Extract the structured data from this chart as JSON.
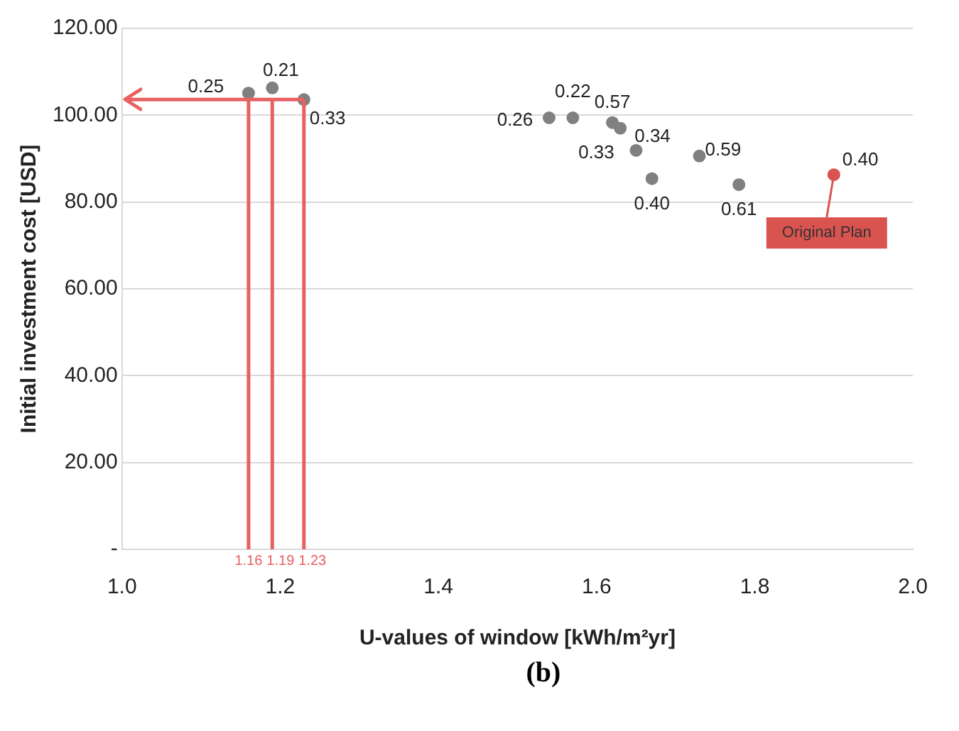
{
  "chart_data": {
    "type": "scatter",
    "xlabel": "U-values of window [kWh/m²yr]",
    "ylabel": "Initial investment cost [USD]",
    "xlim": [
      1.0,
      2.0
    ],
    "xticks": [
      {
        "value": 1.0,
        "label": "1.0"
      },
      {
        "value": 1.2,
        "label": "1.2"
      },
      {
        "value": 1.4,
        "label": "1.4"
      },
      {
        "value": 1.6,
        "label": "1.6"
      },
      {
        "value": 1.8,
        "label": "1.8"
      },
      {
        "value": 2.0,
        "label": "2.0"
      }
    ],
    "ylim": [
      0,
      120
    ],
    "yticks": [
      {
        "value": 0,
        "label": "-"
      },
      {
        "value": 20,
        "label": "20.00"
      },
      {
        "value": 40,
        "label": "40.00"
      },
      {
        "value": 60,
        "label": "60.00"
      },
      {
        "value": 80,
        "label": "80.00"
      },
      {
        "value": 100,
        "label": "100.00"
      },
      {
        "value": 120,
        "label": "120.00"
      }
    ],
    "grid": "y",
    "marker": "circle",
    "series": [
      {
        "color": "#808080",
        "x": [
          1.16,
          1.19,
          1.23,
          1.54,
          1.57,
          1.62,
          1.63,
          1.65,
          1.67,
          1.73,
          1.78
        ],
        "values": [
          105.1,
          106.3,
          103.6,
          99.4,
          99.4,
          98.3,
          97.0,
          91.9,
          85.4,
          90.6,
          84.0
        ]
      },
      {
        "color": "#d9534f",
        "x": [
          1.9
        ],
        "values": [
          86.3
        ]
      }
    ],
    "ref_lines": [
      {
        "axis": "x",
        "value": 1.16,
        "label": "1.16",
        "color": "#e86060"
      },
      {
        "axis": "x",
        "value": 1.19,
        "label": "1.19",
        "color": "#e86060"
      },
      {
        "axis": "x",
        "value": 1.23,
        "label": "1.23",
        "color": "#e86060"
      },
      {
        "axis": "y",
        "value": 103.6,
        "color": "#e86060"
      }
    ],
    "annotations": [
      {
        "text": "0.25",
        "x": 1.16,
        "y": 105.1
      },
      {
        "text": "0.21",
        "x": 1.19,
        "y": 106.3
      },
      {
        "text": "0.33",
        "x": 1.23,
        "y": 103.6
      },
      {
        "text": "0.26",
        "x": 1.54,
        "y": 99.4
      },
      {
        "text": "0.22",
        "x": 1.57,
        "y": 99.4
      },
      {
        "text": "0.57",
        "x": 1.62,
        "y": 98.3
      },
      {
        "text": "0.34",
        "x": 1.63,
        "y": 97.0
      },
      {
        "text": "0.33",
        "x": 1.65,
        "y": 91.9
      },
      {
        "text": "0.40",
        "x": 1.67,
        "y": 85.4
      },
      {
        "text": "0.59",
        "x": 1.73,
        "y": 90.6
      },
      {
        "text": "0.61",
        "x": 1.78,
        "y": 84.0
      },
      {
        "text": "0.40",
        "x": 1.9,
        "y": 86.3
      },
      {
        "text": "Original Plan",
        "x": 1.9,
        "y": 86.3
      },
      "(b)"
    ]
  }
}
